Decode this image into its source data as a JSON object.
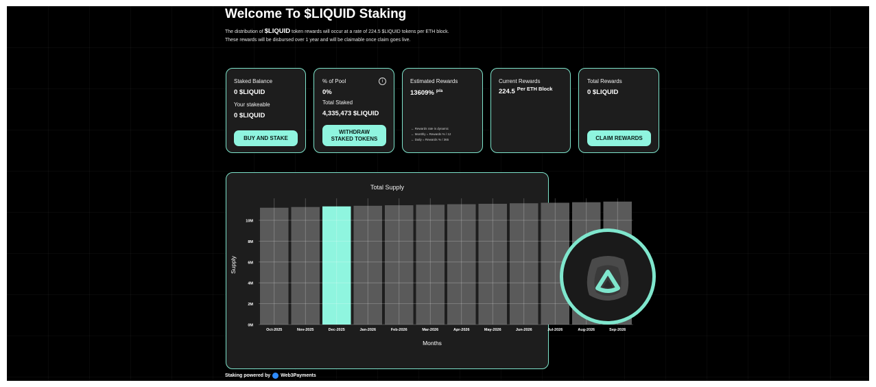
{
  "header": {
    "title": "Welcome To $LIQUID Staking",
    "intro_prefix": "The distribution of",
    "intro_token": "$LIQUID",
    "intro_suffix": "token rewards will occur at a rate of 224.5 $LIQUID tokens per ETH block.",
    "intro_line2": "These rewards will be disbursed over 1 year and will be claimable once claim goes live."
  },
  "cards": {
    "staked": {
      "label": "Staked Balance",
      "value": "0 $LIQUID",
      "stakeable_label": "Your stakeable",
      "stakeable_value": "0 $LIQUID",
      "button": "BUY AND STAKE"
    },
    "pool": {
      "label": "% of Pool",
      "info": "i",
      "value": "0%",
      "total_label": "Total Staked",
      "total_value": "4,335,473 $LIQUID",
      "button_line1": "WITHDRAW",
      "button_line2": "STAKED TOKENS"
    },
    "estimated": {
      "label": "Estimated Rewards",
      "value": "13609%",
      "unit": "p/a",
      "notes": [
        "← Rewards rate is dynamic",
        "← Monthly = Rewards % / 12",
        "← Daily = Rewards % / 365"
      ]
    },
    "current": {
      "label": "Current Rewards",
      "value": "224.5",
      "unit": "Per ETH Block"
    },
    "total": {
      "label": "Total Rewards",
      "value": "0 $LIQUID",
      "button": "CLAIM REWARDS"
    }
  },
  "footer": {
    "prefix": "Staking powered by",
    "brand": "Web3Payments"
  },
  "colors": {
    "accent": "#8ff5df",
    "bar": "#5a5a5a",
    "card_border": "#7fe6cd",
    "card_bg": "#1d1d1d"
  },
  "chart_data": {
    "type": "bar",
    "title": "Total Supply",
    "xlabel": "Months",
    "ylabel": "Supply",
    "categories": [
      "Oct-2025",
      "Nov-2025",
      "Dec-2025",
      "Jan-2026",
      "Feb-2026",
      "Mar-2026",
      "Apr-2026",
      "May-2026",
      "Jun-2026",
      "Jul-2026",
      "Aug-2026",
      "Sep-2026"
    ],
    "values": [
      11200000,
      11270000,
      11330000,
      11390000,
      11440000,
      11490000,
      11540000,
      11580000,
      11630000,
      11680000,
      11730000,
      11790000
    ],
    "highlight_index": 2,
    "yticks": [
      0,
      2000000,
      4000000,
      6000000,
      8000000,
      10000000
    ],
    "ytick_labels": [
      "0M",
      "2M",
      "4M",
      "6M",
      "8M",
      "10M"
    ],
    "ylim": [
      0,
      12500000
    ],
    "grid": true
  }
}
